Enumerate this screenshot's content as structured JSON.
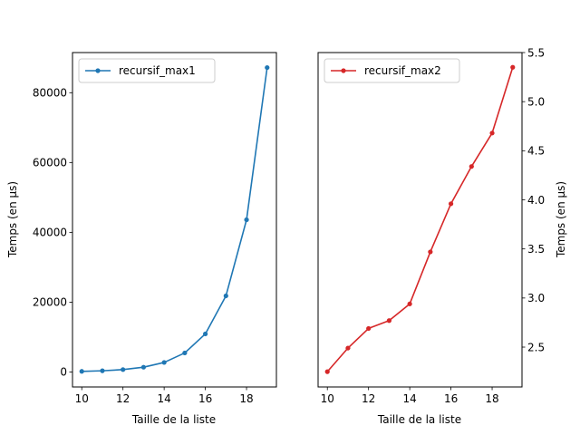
{
  "chart_data": [
    {
      "type": "line",
      "xlabel": "Taille de la liste",
      "ylabel": "Temps (en µs)",
      "xlim": [
        9.55,
        19.45
      ],
      "ylim": [
        -4300,
        91500
      ],
      "xticks": [
        10,
        12,
        14,
        16,
        18
      ],
      "yticks": [
        0,
        20000,
        40000,
        60000,
        80000
      ],
      "y_axis_side": "left",
      "grid": false,
      "legend_position": "upper left",
      "series": [
        {
          "name": "recursif_max1",
          "color": "#1f77b4",
          "marker": "circle",
          "x": [
            10,
            11,
            12,
            13,
            14,
            15,
            16,
            17,
            18,
            19
          ],
          "y": [
            170,
            340,
            680,
            1360,
            2720,
            5450,
            10900,
            21800,
            43600,
            87200
          ]
        }
      ]
    },
    {
      "type": "line",
      "xlabel": "Taille de la liste",
      "ylabel": "Temps (en µs)",
      "xlim": [
        9.55,
        19.45
      ],
      "ylim": [
        2.094,
        5.5
      ],
      "xticks": [
        10,
        12,
        14,
        16,
        18
      ],
      "yticks": [
        2.5,
        3.0,
        3.5,
        4.0,
        4.5,
        5.0,
        5.5
      ],
      "y_axis_side": "right",
      "grid": false,
      "legend_position": "upper left",
      "series": [
        {
          "name": "recursif_max2",
          "color": "#d62728",
          "marker": "circle",
          "x": [
            10,
            11,
            12,
            13,
            14,
            15,
            16,
            17,
            18,
            19
          ],
          "y": [
            2.25,
            2.49,
            2.69,
            2.77,
            2.94,
            3.47,
            3.96,
            4.34,
            4.68,
            5.35
          ]
        }
      ]
    }
  ]
}
